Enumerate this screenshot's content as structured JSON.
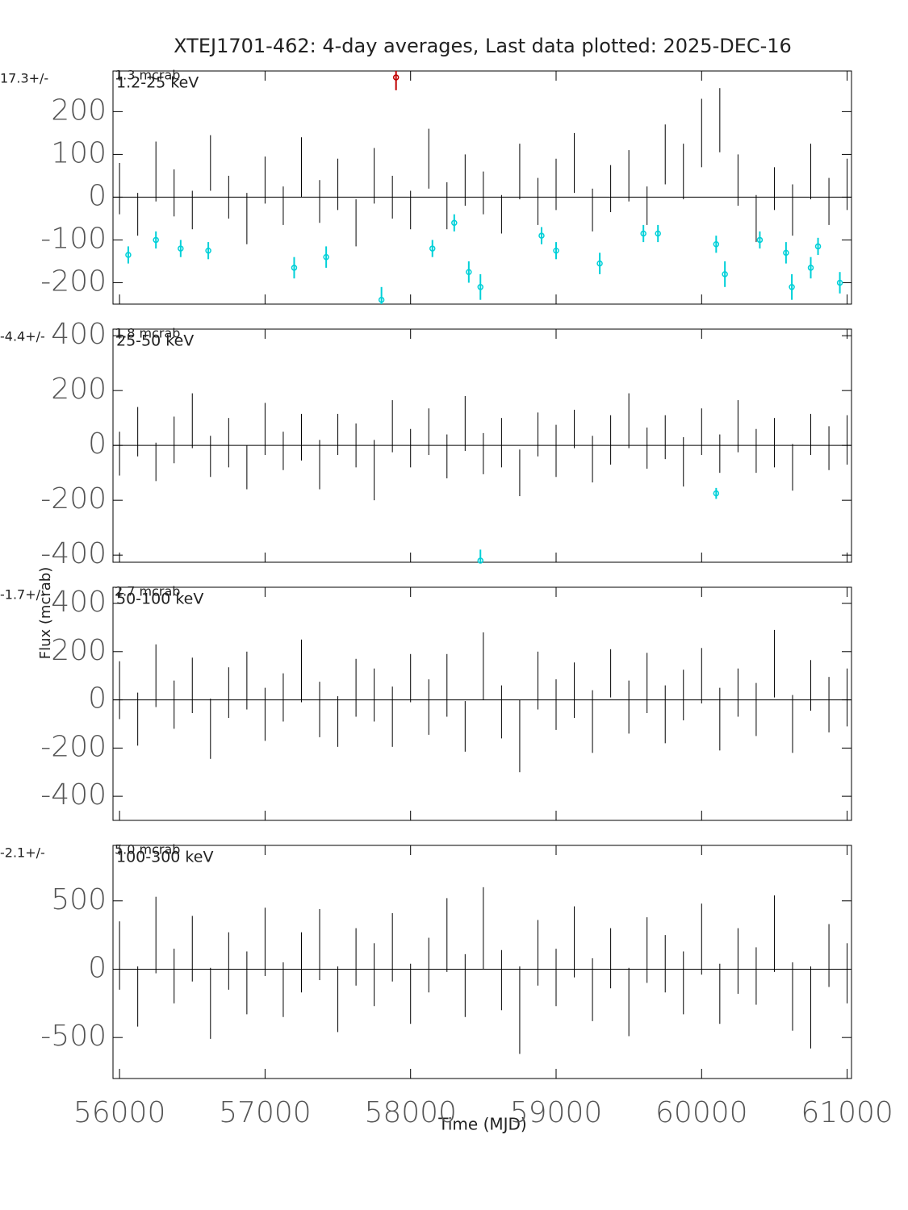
{
  "chart_data": [
    {
      "type": "errorbar",
      "title": "XTEJ1701-462:  4-day averages,  Last data plotted: 2025-DEC-16",
      "band": "1.2-25 keV",
      "mean": "17.3+/-",
      "mean_error": "1.3 mcrab",
      "xlim": [
        55955,
        61030
      ],
      "xticks": [
        56000,
        57000,
        58000,
        59000,
        60000,
        61000
      ],
      "xtick_labels": false,
      "ylim": [
        -250,
        295
      ],
      "yticks": [
        -200,
        -100,
        0,
        100,
        200
      ],
      "series": [
        {
          "color": "#000000",
          "x": [
            56000,
            56125,
            56250,
            56375,
            56500,
            56625,
            56750,
            56875,
            57000,
            57125,
            57250,
            57375,
            57500,
            57625,
            57750,
            57875,
            58000,
            58125,
            58250,
            58375,
            58500,
            58625,
            58750,
            58875,
            59000,
            59125,
            59250,
            59375,
            59500,
            59625,
            59750,
            59875,
            60000,
            60125,
            60250,
            60375,
            60500,
            60625,
            60750,
            60875,
            61000
          ],
          "values": [
            20,
            -40,
            60,
            10,
            -30,
            80,
            0,
            -50,
            40,
            -20,
            70,
            -10,
            30,
            -60,
            50,
            0,
            -30,
            90,
            -20,
            40,
            10,
            -40,
            60,
            -10,
            30,
            80,
            -30,
            20,
            50,
            -20,
            100,
            60,
            150,
            180,
            40,
            -50,
            20,
            -30,
            60,
            -10,
            30
          ],
          "errors": [
            60,
            50,
            70,
            55,
            45,
            65,
            50,
            60,
            55,
            45,
            70,
            50,
            60,
            55,
            65,
            50,
            45,
            70,
            55,
            60,
            50,
            45,
            65,
            55,
            60,
            70,
            50,
            55,
            60,
            45,
            70,
            65,
            80,
            75,
            60,
            55,
            50,
            60,
            65,
            55,
            60
          ]
        },
        {
          "color": "#00d0d8",
          "x": [
            56060,
            56250,
            56420,
            56610,
            57200,
            57420,
            57800,
            58150,
            58300,
            58400,
            58480,
            58900,
            59000,
            59300,
            59600,
            59700,
            60100,
            60160,
            60400,
            60580,
            60620,
            60750,
            60800,
            60950
          ],
          "values": [
            -135,
            -100,
            -120,
            -125,
            -165,
            -140,
            -240,
            -120,
            -60,
            -175,
            -210,
            -90,
            -125,
            -155,
            -85,
            -85,
            -110,
            -180,
            -100,
            -130,
            -210,
            -165,
            -115,
            -200
          ],
          "errors": [
            20,
            20,
            20,
            20,
            25,
            25,
            30,
            20,
            20,
            25,
            30,
            20,
            20,
            25,
            20,
            20,
            20,
            30,
            20,
            25,
            30,
            25,
            20,
            25
          ]
        },
        {
          "color": "#c00000",
          "x": [
            57900
          ],
          "values": [
            280
          ],
          "errors": [
            30
          ]
        }
      ]
    },
    {
      "type": "errorbar",
      "band": "25-50 keV",
      "mean": "-4.4+/-",
      "mean_error": "1.8 mcrab",
      "xlim": [
        55955,
        61030
      ],
      "xticks": [
        56000,
        57000,
        58000,
        59000,
        60000,
        61000
      ],
      "xtick_labels": false,
      "ylim": [
        -426,
        424
      ],
      "yticks": [
        -400,
        -200,
        0,
        200,
        400
      ],
      "series": [
        {
          "color": "#000000",
          "x": [
            56000,
            56125,
            56250,
            56375,
            56500,
            56625,
            56750,
            56875,
            57000,
            57125,
            57250,
            57375,
            57500,
            57625,
            57750,
            57875,
            58000,
            58125,
            58250,
            58375,
            58500,
            58625,
            58750,
            58875,
            59000,
            59125,
            59250,
            59375,
            59500,
            59625,
            59750,
            59875,
            60000,
            60125,
            60250,
            60375,
            60500,
            60625,
            60750,
            60875,
            61000
          ],
          "values": [
            -30,
            50,
            -60,
            20,
            90,
            -40,
            10,
            -80,
            60,
            -20,
            30,
            -70,
            40,
            0,
            -90,
            70,
            -10,
            50,
            -40,
            80,
            -30,
            10,
            -100,
            40,
            -20,
            60,
            -50,
            20,
            90,
            -10,
            30,
            -60,
            50,
            -30,
            70,
            -20,
            10,
            -80,
            40,
            -10,
            20
          ],
          "errors": [
            80,
            90,
            70,
            85,
            100,
            75,
            90,
            80,
            95,
            70,
            85,
            90,
            75,
            80,
            110,
            95,
            70,
            85,
            80,
            100,
            75,
            90,
            85,
            80,
            95,
            70,
            85,
            90,
            100,
            75,
            80,
            90,
            85,
            70,
            95,
            80,
            90,
            85,
            75,
            80,
            90
          ]
        },
        {
          "color": "#00d0d8",
          "x": [
            58480,
            60100
          ],
          "values": [
            -420,
            -175
          ],
          "errors": [
            40,
            20
          ]
        }
      ]
    },
    {
      "type": "errorbar",
      "band": "50-100 keV",
      "mean": "-1.7+/-",
      "mean_error": "2.7 mcrab",
      "ylabel": "Flux (mcrab)",
      "xlim": [
        55955,
        61030
      ],
      "xticks": [
        56000,
        57000,
        58000,
        59000,
        60000,
        61000
      ],
      "xtick_labels": false,
      "ylim": [
        -500,
        467
      ],
      "yticks": [
        -400,
        -200,
        0,
        200,
        400
      ],
      "series": [
        {
          "color": "#000000",
          "x": [
            56000,
            56125,
            56250,
            56375,
            56500,
            56625,
            56750,
            56875,
            57000,
            57125,
            57250,
            57375,
            57500,
            57625,
            57750,
            57875,
            58000,
            58125,
            58250,
            58375,
            58500,
            58625,
            58750,
            58875,
            59000,
            59125,
            59250,
            59375,
            59500,
            59625,
            59750,
            59875,
            60000,
            60125,
            60250,
            60375,
            60500,
            60625,
            60750,
            60875,
            61000
          ],
          "values": [
            40,
            -80,
            100,
            -20,
            60,
            -120,
            30,
            80,
            -60,
            10,
            120,
            -40,
            -90,
            50,
            20,
            -70,
            90,
            -30,
            60,
            -110,
            140,
            -50,
            -150,
            80,
            -20,
            40,
            -90,
            110,
            -30,
            70,
            -60,
            20,
            100,
            -80,
            30,
            -40,
            150,
            -100,
            60,
            -20,
            10
          ],
          "errors": [
            120,
            110,
            130,
            100,
            115,
            125,
            105,
            120,
            110,
            100,
            130,
            115,
            105,
            120,
            110,
            125,
            100,
            115,
            130,
            105,
            140,
            110,
            150,
            120,
            105,
            115,
            130,
            100,
            110,
            125,
            120,
            105,
            115,
            130,
            100,
            110,
            140,
            120,
            105,
            115,
            120
          ]
        }
      ]
    },
    {
      "type": "errorbar",
      "band": "100-300 keV",
      "mean": "-2.1+/-",
      "mean_error": "5.0 mcrab",
      "xlabel": "Time (MJD)",
      "xlim": [
        55955,
        61030
      ],
      "xticks": [
        56000,
        57000,
        58000,
        59000,
        60000,
        61000
      ],
      "xtick_labels": true,
      "ylim": [
        -800,
        906
      ],
      "yticks": [
        -500,
        0,
        500
      ],
      "series": [
        {
          "color": "#000000",
          "x": [
            56000,
            56125,
            56250,
            56375,
            56500,
            56625,
            56750,
            56875,
            57000,
            57125,
            57250,
            57375,
            57500,
            57625,
            57750,
            57875,
            58000,
            58125,
            58250,
            58375,
            58500,
            58625,
            58750,
            58875,
            59000,
            59125,
            59250,
            59375,
            59500,
            59625,
            59750,
            59875,
            60000,
            60125,
            60250,
            60375,
            60500,
            60625,
            60750,
            60875,
            61000
          ],
          "values": [
            100,
            -200,
            250,
            -50,
            150,
            -250,
            60,
            -100,
            200,
            -150,
            50,
            180,
            -220,
            90,
            -40,
            160,
            -180,
            30,
            250,
            -120,
            300,
            -80,
            -300,
            120,
            -60,
            200,
            -150,
            80,
            -240,
            140,
            40,
            -100,
            220,
            -180,
            60,
            -50,
            260,
            -200,
            -280,
            100,
            -30
          ],
          "errors": [
            250,
            220,
            280,
            200,
            240,
            260,
            210,
            230,
            250,
            200,
            220,
            260,
            240,
            210,
            230,
            250,
            220,
            200,
            270,
            230,
            300,
            220,
            320,
            240,
            210,
            260,
            230,
            220,
            250,
            240,
            210,
            230,
            260,
            220,
            240,
            210,
            280,
            250,
            300,
            230,
            220
          ]
        }
      ]
    }
  ]
}
